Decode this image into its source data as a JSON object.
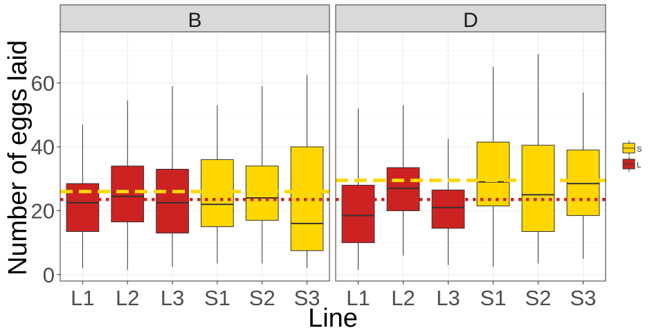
{
  "chart_data": {
    "type": "box",
    "ylabel": "Number of eggs laid",
    "xlabel": "Line",
    "ylim": [
      -2,
      76
    ],
    "yticks": [
      0,
      20,
      40,
      60
    ],
    "grid": true,
    "legend": {
      "placement": "right",
      "entries": [
        {
          "label": "S",
          "color": "#FFD700"
        },
        {
          "label": "L",
          "color": "#CC2222"
        }
      ]
    },
    "colors": {
      "S": "#FFD700",
      "L": "#CC2222",
      "strip": "#D9D9D9",
      "grid": "#EBEBEB"
    },
    "categories": [
      "L1",
      "L2",
      "L3",
      "S1",
      "S2",
      "S3"
    ],
    "panels": [
      {
        "label": "B",
        "ref_lines": {
          "S_dashed": 26,
          "L_dotted": 23.5
        },
        "boxes": [
          {
            "cat": "L1",
            "group": "L",
            "min": 2,
            "q1": 13.5,
            "median": 22.5,
            "q3": 28.5,
            "max": 47
          },
          {
            "cat": "L2",
            "group": "L",
            "min": 1.5,
            "q1": 16.5,
            "median": 24.5,
            "q3": 34,
            "max": 54.5
          },
          {
            "cat": "L3",
            "group": "L",
            "min": 2.5,
            "q1": 13,
            "median": 22.5,
            "q3": 33,
            "max": 59
          },
          {
            "cat": "S1",
            "group": "S",
            "min": 3.5,
            "q1": 15,
            "median": 22,
            "q3": 36,
            "max": 53
          },
          {
            "cat": "S2",
            "group": "S",
            "min": 3.5,
            "q1": 17,
            "median": 24,
            "q3": 34,
            "max": 59
          },
          {
            "cat": "S3",
            "group": "S",
            "min": 2,
            "q1": 7.5,
            "median": 16,
            "q3": 40,
            "max": 62.5
          }
        ]
      },
      {
        "label": "D",
        "ref_lines": {
          "S_dashed": 29.5,
          "L_dotted": 23.5
        },
        "boxes": [
          {
            "cat": "L1",
            "group": "L",
            "min": 1.5,
            "q1": 10,
            "median": 18.5,
            "q3": 28,
            "max": 52
          },
          {
            "cat": "L2",
            "group": "L",
            "min": 6,
            "q1": 20,
            "median": 27,
            "q3": 33.5,
            "max": 53
          },
          {
            "cat": "L3",
            "group": "L",
            "min": 3,
            "q1": 14.5,
            "median": 21,
            "q3": 26.5,
            "max": 42.5
          },
          {
            "cat": "S1",
            "group": "S",
            "min": 2.5,
            "q1": 21.5,
            "median": 29,
            "q3": 41.5,
            "max": 65
          },
          {
            "cat": "S2",
            "group": "S",
            "min": 3.5,
            "q1": 13.5,
            "median": 25,
            "q3": 40.5,
            "max": 69
          },
          {
            "cat": "S3",
            "group": "S",
            "min": 5,
            "q1": 18.5,
            "median": 28.5,
            "q3": 39,
            "max": 57
          }
        ]
      }
    ]
  }
}
